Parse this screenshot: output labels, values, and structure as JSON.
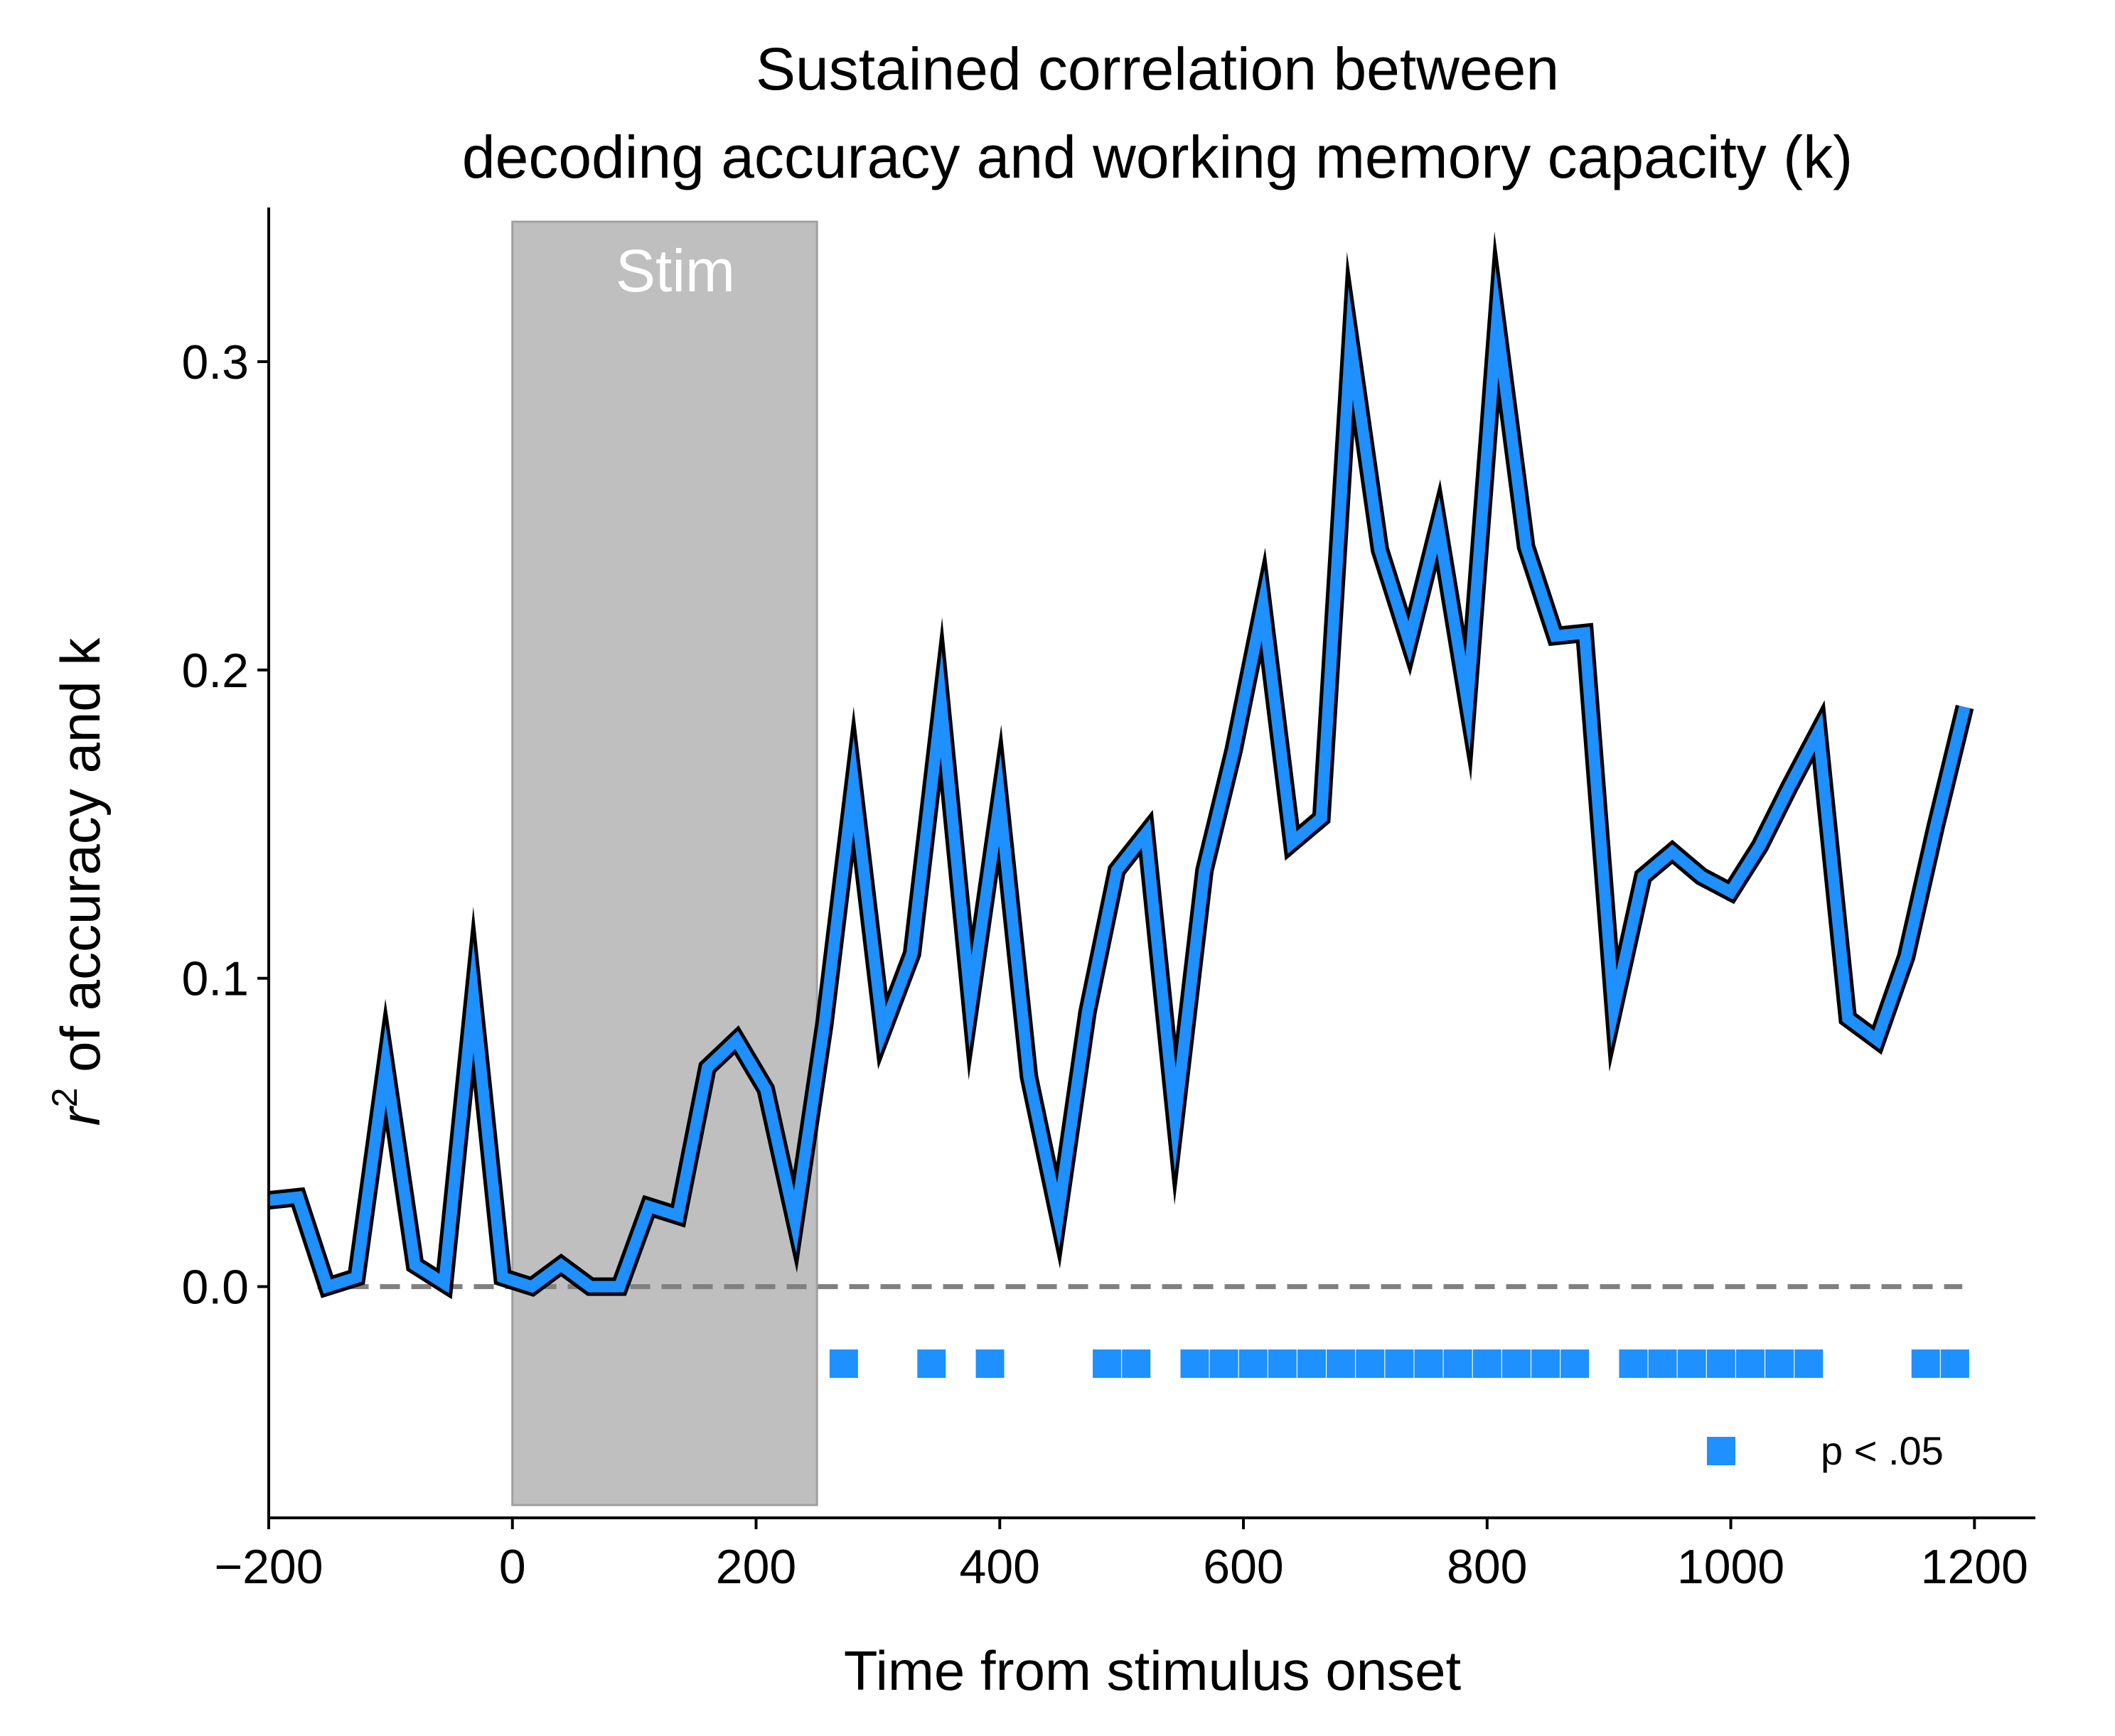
{
  "chart_data": {
    "type": "line",
    "title": [
      "Sustained correlation between",
      "decoding accuracy and working memory capacity (k)"
    ],
    "xlabel": "Time from stimulus onset",
    "ylabel_main": " of accuracy and k",
    "ylabel_var": "r",
    "ylabel_sup": "2",
    "xlim": [
      -200,
      1250
    ],
    "ylim": [
      -0.075,
      0.35
    ],
    "xticks": [
      -200,
      0,
      200,
      400,
      600,
      800,
      1000,
      1200
    ],
    "xtick_labels": [
      "−200",
      "0",
      "200",
      "400",
      "600",
      "800",
      "1000",
      "1200"
    ],
    "yticks": [
      0.0,
      0.1,
      0.2,
      0.3
    ],
    "ytick_labels": [
      "0.0",
      "0.1",
      "0.2",
      "0.3"
    ],
    "grid": false,
    "stim_region": {
      "x0": 0,
      "x1": 250,
      "label": "Stim",
      "color": "#bfbfbf"
    },
    "zero_line": {
      "y": 0,
      "x0": -160,
      "x1": 1190,
      "style": "dashed",
      "color": "#808080"
    },
    "series": [
      {
        "color": "#1e90ff",
        "edge_color": "#000000",
        "x": [
          -200,
          -176,
          -152,
          -128,
          -104,
          -80,
          -56,
          -32,
          -8,
          16,
          40,
          64,
          88,
          112,
          136,
          160,
          184,
          208,
          232,
          256,
          280,
          304,
          328,
          352,
          376,
          400,
          424,
          448,
          472,
          496,
          520,
          544,
          568,
          592,
          616,
          640,
          664,
          688,
          712,
          736,
          760,
          784,
          808,
          832,
          856,
          880,
          904,
          928,
          952,
          976,
          1000,
          1024,
          1048,
          1072,
          1096,
          1120,
          1144,
          1168,
          1192
        ],
        "values": [
          0.028,
          0.029,
          0.0,
          0.003,
          0.072,
          0.007,
          0.001,
          0.094,
          0.003,
          0.0,
          0.007,
          0.0,
          0.0,
          0.026,
          0.023,
          0.071,
          0.08,
          0.064,
          0.021,
          0.085,
          0.163,
          0.083,
          0.108,
          0.189,
          0.092,
          0.158,
          0.068,
          0.023,
          0.089,
          0.135,
          0.147,
          0.054,
          0.135,
          0.174,
          0.221,
          0.144,
          0.152,
          0.306,
          0.239,
          0.209,
          0.247,
          0.189,
          0.313,
          0.24,
          0.211,
          0.212,
          0.09,
          0.133,
          0.141,
          0.133,
          0.128,
          0.143,
          0.162,
          0.18,
          0.087,
          0.08,
          0.107,
          0.149,
          0.188
        ]
      }
    ],
    "significance": {
      "label": "p < .05",
      "color": "#1e90ff",
      "y": -0.025,
      "x": [
        272,
        344,
        392,
        488,
        512,
        560,
        584,
        608,
        632,
        656,
        680,
        704,
        728,
        752,
        776,
        800,
        824,
        848,
        872,
        920,
        944,
        968,
        992,
        1016,
        1040,
        1064,
        1160,
        1184
      ]
    },
    "legend_position": "lower-right"
  }
}
